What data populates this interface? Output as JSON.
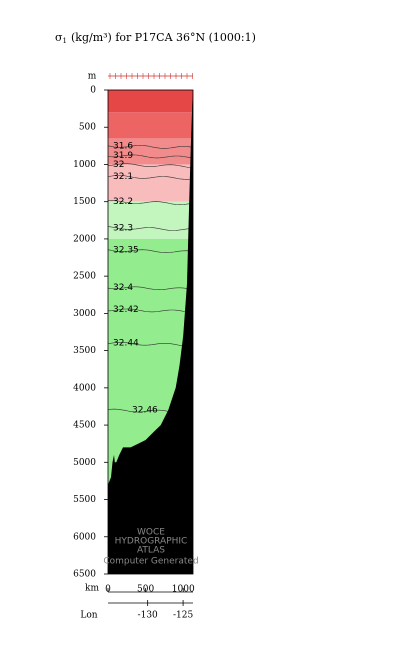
{
  "chart_data": {
    "type": "section",
    "title": {
      "symbol": "σ",
      "subscript": "1",
      "text": "(kg/m³) for P17CA 36°N (1000:1)"
    },
    "ylabel": "m",
    "xlabel": "km",
    "lonlabel": "Lon",
    "ylim": [
      0,
      6500
    ],
    "yticks": [
      0,
      500,
      1000,
      1500,
      2000,
      2500,
      3000,
      3500,
      4000,
      4500,
      5000,
      5500,
      6000,
      6500
    ],
    "xlim": [
      0,
      1130
    ],
    "xticks": [
      0,
      500,
      1000
    ],
    "lonlim": [
      -135.6,
      -123.6
    ],
    "lonticks": [
      -130,
      -125
    ],
    "fill_bands": [
      {
        "from": 0,
        "to": 300,
        "color": "#e54646"
      },
      {
        "from": 300,
        "to": 650,
        "color": "#ec6464"
      },
      {
        "from": 650,
        "to": 1000,
        "color": "#f28c8c"
      },
      {
        "from": 1000,
        "to": 1500,
        "color": "#f8bcbc"
      },
      {
        "from": 1500,
        "to": 2000,
        "color": "#c3f5bf"
      },
      {
        "from": 2000,
        "to": 6500,
        "color": "#93ec8e"
      }
    ],
    "contours": [
      {
        "level": 31.6,
        "depth": 750
      },
      {
        "level": 31.9,
        "depth": 880
      },
      {
        "level": 32,
        "depth": 1000
      },
      {
        "level": 32.1,
        "depth": 1160
      },
      {
        "level": 32.2,
        "depth": 1500
      },
      {
        "level": 32.3,
        "depth": 1850
      },
      {
        "level": 32.35,
        "depth": 2150
      },
      {
        "level": 32.4,
        "depth": 2650
      },
      {
        "level": 32.42,
        "depth": 2950
      },
      {
        "level": 32.44,
        "depth": 3400
      },
      {
        "level": 32.46,
        "depth": 4300
      }
    ],
    "bathymetry": {
      "x": [
        0,
        40,
        60,
        80,
        90,
        110,
        150,
        200,
        300,
        400,
        500,
        600,
        700,
        800,
        900,
        950,
        1000,
        1050,
        1080,
        1100,
        1120,
        1130
      ],
      "depth": [
        5300,
        5200,
        5000,
        4900,
        5000,
        5000,
        4900,
        4800,
        4800,
        4750,
        4700,
        4600,
        4500,
        4300,
        4000,
        3700,
        3300,
        2600,
        1500,
        800,
        200,
        0
      ]
    },
    "watermark": [
      "WOCE",
      "HYDROGRAPHIC",
      "ATLAS",
      "Computer Generated"
    ]
  }
}
